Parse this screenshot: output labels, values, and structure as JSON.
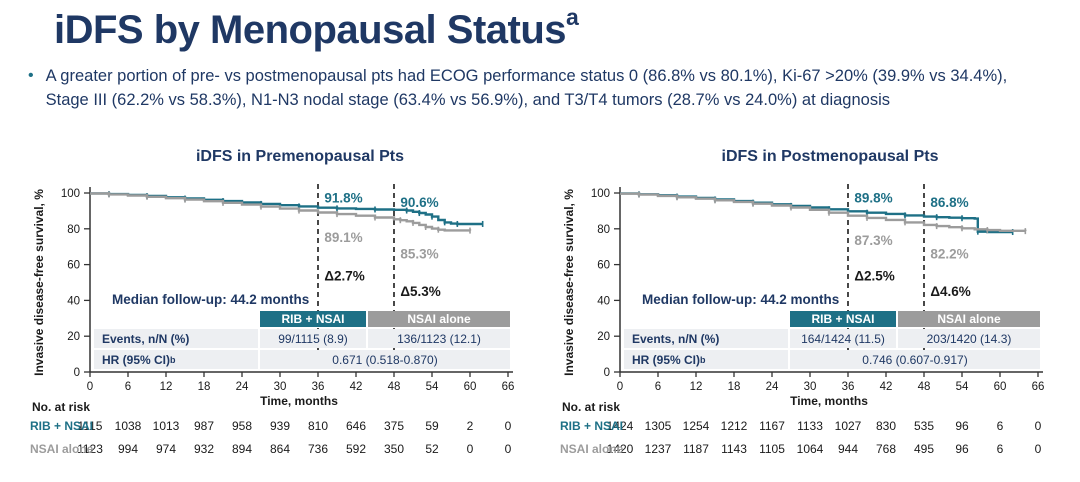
{
  "slide": {
    "title": "iDFS by Menopausal Status",
    "title_superscript": "a",
    "bullet_marker": "•",
    "bullet": "A greater portion of pre- vs postmenopausal pts had ECOG performance status 0 (86.8% vs 80.1%), Ki-67 >20% (39.9% vs 34.4%), Stage III (62.2% vs 58.3%), N1-N3 nodal stage (63.4% vs 56.9%), and T3/T4 tumors (28.7% vs 24.0%) at diagnosis"
  },
  "colors": {
    "navy": "#1F3864",
    "teal": "#1E7086",
    "gray": "#9C9C9C",
    "row_bg": "#EDEFF2",
    "axis": "#333333"
  },
  "chart_data": [
    {
      "type": "line",
      "title": "iDFS in Premenopausal Pts",
      "xlabel": "Time, months",
      "ylabel": "Invasive disease-free survival, %",
      "xlim": [
        0,
        66
      ],
      "ylim": [
        0,
        100
      ],
      "xticks": [
        0,
        6,
        12,
        18,
        24,
        30,
        36,
        42,
        48,
        54,
        60,
        66
      ],
      "yticks": [
        0,
        20,
        40,
        60,
        80,
        100
      ],
      "landmark_lines_x": [
        36,
        48
      ],
      "median_followup": "Median follow-up: 44.2 months",
      "series": [
        {
          "name": "RIB + NSAI",
          "color": "#1E7086",
          "points": [
            [
              0,
              99.8
            ],
            [
              3,
              99.4
            ],
            [
              6,
              98.9
            ],
            [
              9,
              98.3
            ],
            [
              12,
              97.6
            ],
            [
              15,
              96.9
            ],
            [
              18,
              96.2
            ],
            [
              21,
              95.5
            ],
            [
              24,
              94.7
            ],
            [
              27,
              93.9
            ],
            [
              30,
              93.2
            ],
            [
              33,
              92.5
            ],
            [
              36,
              91.8
            ],
            [
              39,
              91.4
            ],
            [
              42,
              91.1
            ],
            [
              45,
              90.8
            ],
            [
              48,
              90.6
            ],
            [
              50,
              90.2
            ],
            [
              51,
              89.5
            ],
            [
              52,
              88.8
            ],
            [
              53,
              88.0
            ],
            [
              54,
              86.8
            ],
            [
              55,
              84.9
            ],
            [
              56,
              83.6
            ],
            [
              57,
              82.9
            ],
            [
              58,
              82.7
            ],
            [
              62,
              82.7
            ]
          ]
        },
        {
          "name": "NSAI alone",
          "color": "#9C9C9C",
          "points": [
            [
              0,
              99.7
            ],
            [
              3,
              99.2
            ],
            [
              6,
              98.6
            ],
            [
              9,
              97.9
            ],
            [
              12,
              97.1
            ],
            [
              15,
              96.3
            ],
            [
              18,
              95.4
            ],
            [
              21,
              94.5
            ],
            [
              24,
              93.5
            ],
            [
              27,
              92.4
            ],
            [
              30,
              91.3
            ],
            [
              33,
              90.2
            ],
            [
              36,
              89.1
            ],
            [
              39,
              88.2
            ],
            [
              42,
              87.3
            ],
            [
              45,
              86.3
            ],
            [
              48,
              85.3
            ],
            [
              49,
              84.8
            ],
            [
              50,
              84.2
            ],
            [
              51,
              83.3
            ],
            [
              52,
              82.2
            ],
            [
              53,
              81.0
            ],
            [
              54,
              80.1
            ],
            [
              55,
              79.5
            ],
            [
              56,
              79.1
            ],
            [
              60,
              79.0
            ]
          ]
        }
      ],
      "annotations": [
        {
          "text": "91.8%",
          "x": 37,
          "v": 94.8,
          "color": "#1E7086"
        },
        {
          "text": "90.6%",
          "x": 49,
          "v": 92.2,
          "color": "#1E7086"
        },
        {
          "text": "89.1%",
          "x": 37,
          "v": 72.5,
          "color": "#9C9C9C"
        },
        {
          "text": "85.3%",
          "x": 49,
          "v": 63.5,
          "color": "#9C9C9C"
        },
        {
          "text": "Δ2.7%",
          "x": 37,
          "v": 51.0,
          "color": "#1A1A1A"
        },
        {
          "text": "Δ5.3%",
          "x": 49,
          "v": 42.5,
          "color": "#1A1A1A"
        }
      ],
      "stats_table": {
        "col_headers": [
          "RIB + NSAI",
          "NSAI alone"
        ],
        "events_label": "Events, n/N (%)",
        "events_values": [
          "99/1115 (8.9)",
          "136/1123 (12.1)"
        ],
        "hr_label": "HR (95% CI)",
        "hr_label_sup": "b",
        "hr_value": "0.671 (0.518-0.870)"
      },
      "at_risk": {
        "title": "No. at risk",
        "rows": [
          {
            "name": "RIB + NSAI",
            "color": "#1E7086",
            "counts": [
              1115,
              1038,
              1013,
              987,
              958,
              939,
              810,
              646,
              375,
              59,
              2,
              0
            ]
          },
          {
            "name": "NSAI alone",
            "color": "#9C9C9C",
            "counts": [
              1123,
              994,
              974,
              932,
              894,
              864,
              736,
              592,
              350,
              52,
              0,
              0
            ]
          }
        ]
      }
    },
    {
      "type": "line",
      "title": "iDFS in Postmenopausal Pts",
      "xlabel": "Time, months",
      "ylabel": "Invasive disease-free survival, %",
      "xlim": [
        0,
        66
      ],
      "ylim": [
        0,
        100
      ],
      "xticks": [
        0,
        6,
        12,
        18,
        24,
        30,
        36,
        42,
        48,
        54,
        60,
        66
      ],
      "yticks": [
        0,
        20,
        40,
        60,
        80,
        100
      ],
      "landmark_lines_x": [
        36,
        48
      ],
      "median_followup": "Median follow-up: 44.2 months",
      "series": [
        {
          "name": "RIB + NSAI",
          "color": "#1E7086",
          "points": [
            [
              0,
              99.8
            ],
            [
              3,
              99.3
            ],
            [
              6,
              98.7
            ],
            [
              9,
              98.0
            ],
            [
              12,
              97.2
            ],
            [
              15,
              96.4
            ],
            [
              18,
              95.5
            ],
            [
              21,
              94.6
            ],
            [
              24,
              93.7
            ],
            [
              27,
              92.8
            ],
            [
              30,
              91.9
            ],
            [
              33,
              90.9
            ],
            [
              36,
              89.8
            ],
            [
              39,
              89.0
            ],
            [
              42,
              88.3
            ],
            [
              45,
              87.5
            ],
            [
              48,
              86.8
            ],
            [
              50,
              86.5
            ],
            [
              52,
              86.2
            ],
            [
              54,
              85.9
            ],
            [
              56,
              85.7
            ],
            [
              56.5,
              78.4
            ],
            [
              58,
              78.2
            ],
            [
              62,
              78.2
            ]
          ]
        },
        {
          "name": "NSAI alone",
          "color": "#9C9C9C",
          "points": [
            [
              0,
              99.6
            ],
            [
              3,
              99.1
            ],
            [
              6,
              98.4
            ],
            [
              9,
              97.6
            ],
            [
              12,
              96.8
            ],
            [
              15,
              95.9
            ],
            [
              18,
              95.0
            ],
            [
              21,
              94.0
            ],
            [
              24,
              93.0
            ],
            [
              27,
              91.9
            ],
            [
              30,
              90.6
            ],
            [
              33,
              89.0
            ],
            [
              36,
              87.3
            ],
            [
              39,
              86.1
            ],
            [
              42,
              85.0
            ],
            [
              45,
              83.6
            ],
            [
              48,
              82.2
            ],
            [
              50,
              81.5
            ],
            [
              52,
              80.9
            ],
            [
              54,
              80.3
            ],
            [
              56,
              79.7
            ],
            [
              58,
              79.3
            ],
            [
              60,
              78.9
            ],
            [
              64,
              78.7
            ]
          ]
        }
      ],
      "annotations": [
        {
          "text": "89.8%",
          "x": 37,
          "v": 94.8,
          "color": "#1E7086"
        },
        {
          "text": "86.8%",
          "x": 49,
          "v": 92.2,
          "color": "#1E7086"
        },
        {
          "text": "87.3%",
          "x": 37,
          "v": 71.0,
          "color": "#9C9C9C"
        },
        {
          "text": "82.2%",
          "x": 49,
          "v": 63.5,
          "color": "#9C9C9C"
        },
        {
          "text": "Δ2.5%",
          "x": 37,
          "v": 51.0,
          "color": "#1A1A1A"
        },
        {
          "text": "Δ4.6%",
          "x": 49,
          "v": 42.5,
          "color": "#1A1A1A"
        }
      ],
      "stats_table": {
        "col_headers": [
          "RIB + NSAI",
          "NSAI alone"
        ],
        "events_label": "Events, n/N (%)",
        "events_values": [
          "164/1424 (11.5)",
          "203/1420 (14.3)"
        ],
        "hr_label": "HR (95% CI)",
        "hr_label_sup": "b",
        "hr_value": "0.746 (0.607-0.917)"
      },
      "at_risk": {
        "title": "No. at risk",
        "rows": [
          {
            "name": "RIB + NSAI",
            "color": "#1E7086",
            "counts": [
              1424,
              1305,
              1254,
              1212,
              1167,
              1133,
              1027,
              830,
              535,
              96,
              6,
              0
            ]
          },
          {
            "name": "NSAI alone",
            "color": "#9C9C9C",
            "counts": [
              1420,
              1237,
              1187,
              1143,
              1105,
              1064,
              944,
              768,
              495,
              96,
              6,
              0
            ]
          }
        ]
      }
    }
  ]
}
